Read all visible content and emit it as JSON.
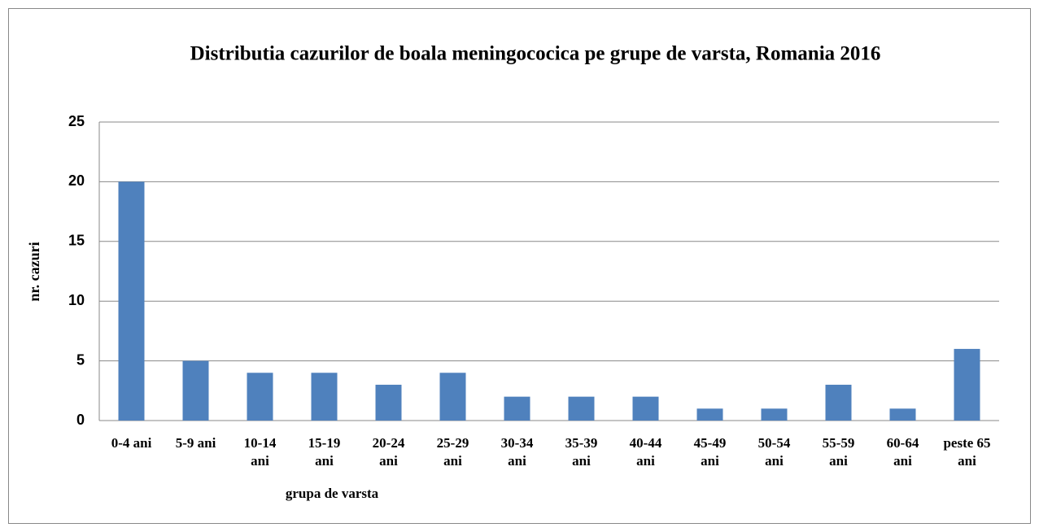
{
  "chart_data": {
    "type": "bar",
    "title": "Distributia cazurilor de boala meningococica pe grupe de varsta, Romania 2016",
    "x_label": "grupa de varsta",
    "y_label": "nr. cazuri",
    "categories": [
      "0-4 ani",
      "5-9 ani",
      "10-14 ani",
      "15-19 ani",
      "20-24 ani",
      "25-29 ani",
      "30-34 ani",
      "35-39 ani",
      "40-44 ani",
      "45-49 ani",
      "50-54 ani",
      "55-59 ani",
      "60-64 ani",
      "peste 65 ani"
    ],
    "values": [
      20,
      5,
      4,
      4,
      3,
      4,
      2,
      2,
      2,
      1,
      1,
      3,
      1,
      6
    ],
    "color": "#4f81bd",
    "ylim": [
      0,
      25
    ],
    "yticks": [
      0,
      5,
      10,
      15,
      20,
      25
    ],
    "grid": true
  }
}
